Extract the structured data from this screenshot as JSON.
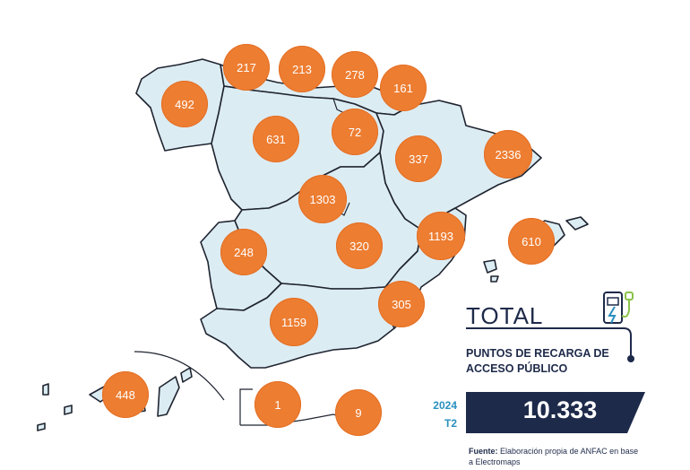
{
  "total": {
    "title": "TOTAL",
    "subtitle": "PUNTOS DE RECARGA DE ACCESO PÚBLICO",
    "year": "2024",
    "quarter": "T2",
    "value": "10.333"
  },
  "source": {
    "label": "Fuente:",
    "text": "Elaboración propia de ANFAC en base a Electromaps"
  },
  "colors": {
    "bubble": "#ed7d31",
    "region_fill": "#dcecf3",
    "navy": "#1e2a4a",
    "accent_blue": "#2a8fbf",
    "plug_green": "#8bc34a"
  },
  "regions": [
    {
      "id": "galicia",
      "value": "492"
    },
    {
      "id": "asturias",
      "value": "217"
    },
    {
      "id": "cantabria",
      "value": "213"
    },
    {
      "id": "pais-vasco",
      "value": "278"
    },
    {
      "id": "navarra",
      "value": "161"
    },
    {
      "id": "castilla-y-leon",
      "value": "631"
    },
    {
      "id": "la-rioja",
      "value": "72"
    },
    {
      "id": "aragon",
      "value": "337"
    },
    {
      "id": "cataluna",
      "value": "2336"
    },
    {
      "id": "madrid",
      "value": "1303"
    },
    {
      "id": "comunidad-valenciana",
      "value": "1193"
    },
    {
      "id": "islas-baleares",
      "value": "610"
    },
    {
      "id": "extremadura",
      "value": "248"
    },
    {
      "id": "castilla-la-mancha",
      "value": "320"
    },
    {
      "id": "murcia",
      "value": "305"
    },
    {
      "id": "andalucia",
      "value": "1159"
    },
    {
      "id": "canarias",
      "value": "448"
    },
    {
      "id": "ceuta",
      "value": "1"
    },
    {
      "id": "melilla",
      "value": "9"
    }
  ],
  "icons": [
    "ev-charger-icon"
  ]
}
